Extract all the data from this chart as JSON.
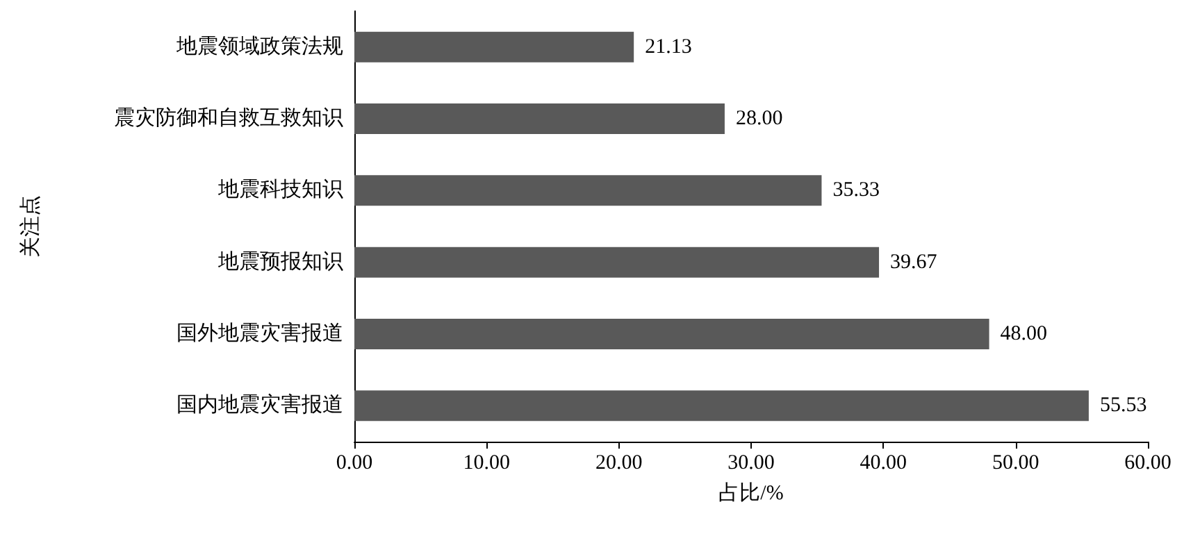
{
  "chart_data": {
    "type": "bar",
    "orientation": "horizontal",
    "xlabel": "占比/%",
    "ylabel": "关注点",
    "categories": [
      "地震领域政策法规",
      "震灾防御和自救互救知识",
      "地震科技知识",
      "地震预报知识",
      "国外地震灾害报道",
      "国内地震灾害报道"
    ],
    "values": [
      21.13,
      28.0,
      35.33,
      39.67,
      48.0,
      55.53
    ],
    "value_labels": [
      "21.13",
      "28.00",
      "35.33",
      "39.67",
      "48.00",
      "55.53"
    ],
    "color": "#595959",
    "xlim": [
      0,
      60
    ],
    "xticks": [
      {
        "value": 0,
        "label": "0.00"
      },
      {
        "value": 10,
        "label": "10.00"
      },
      {
        "value": 20,
        "label": "20.00"
      },
      {
        "value": 30,
        "label": "30.00"
      },
      {
        "value": 40,
        "label": "40.00"
      },
      {
        "value": 50,
        "label": "50.00"
      },
      {
        "value": 60,
        "label": "60.00"
      }
    ],
    "grid": false
  }
}
